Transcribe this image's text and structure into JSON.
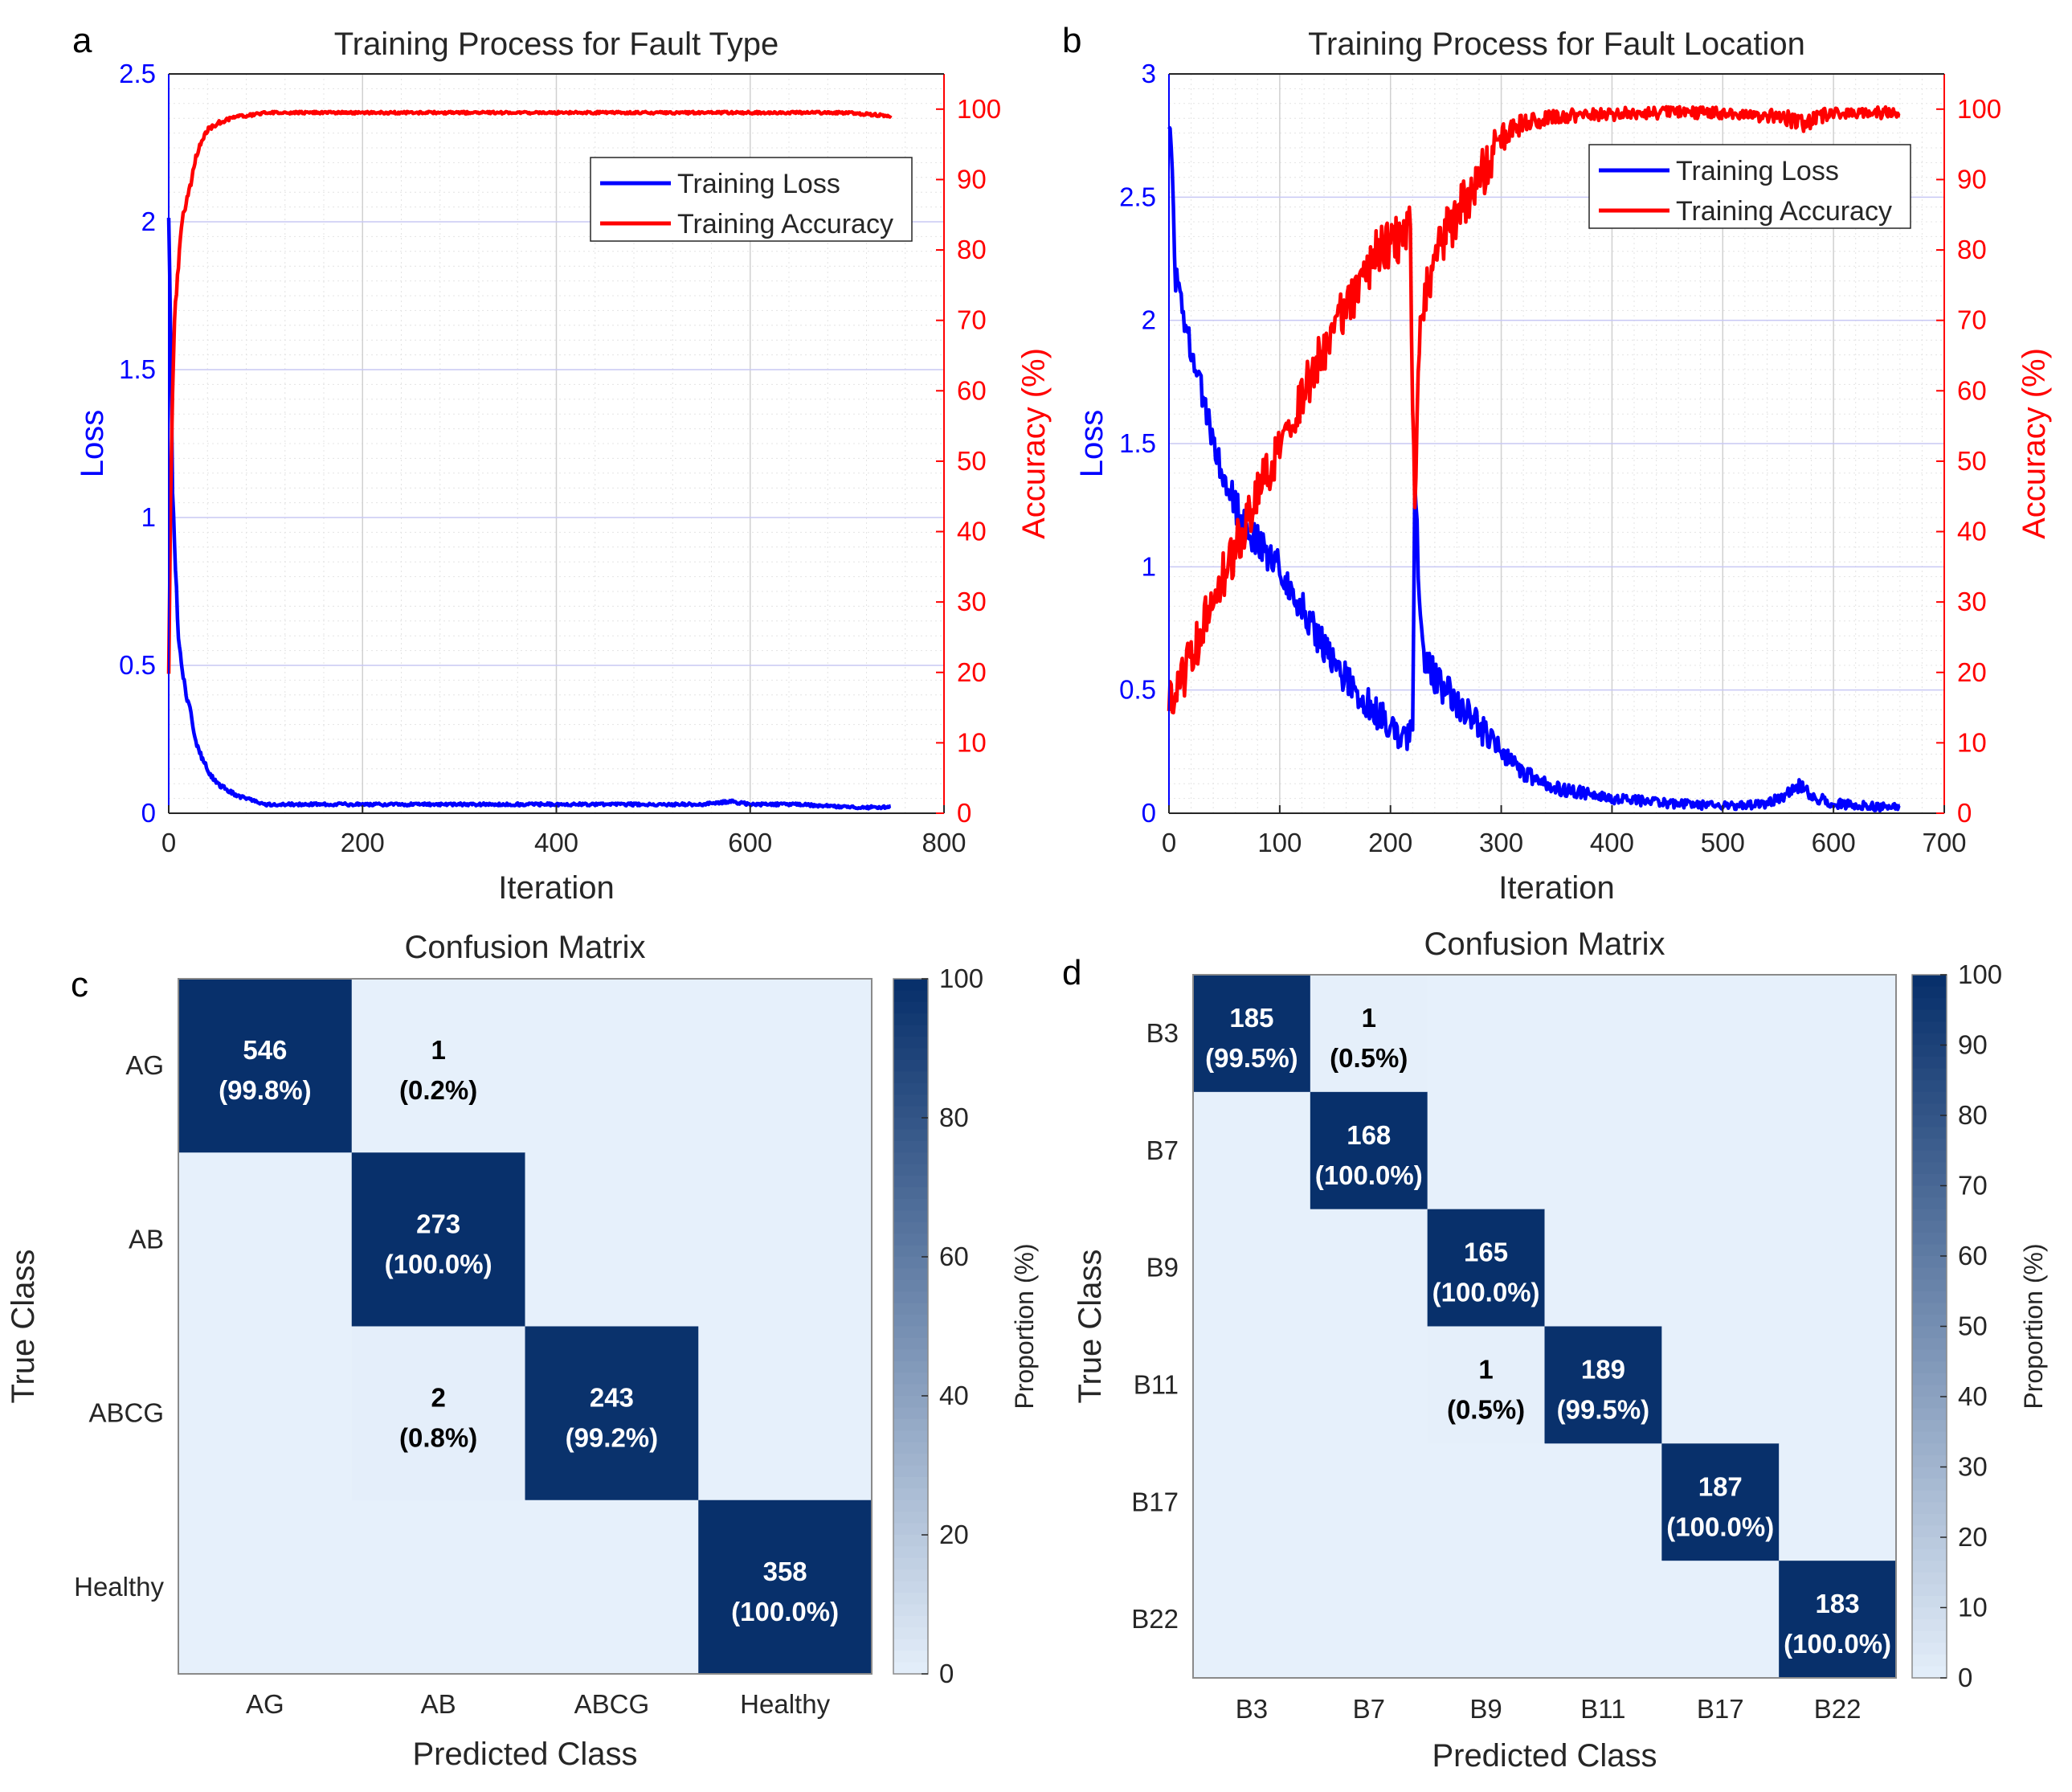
{
  "chart_data": [
    {
      "id": "a",
      "panel_letter": "a",
      "type": "line",
      "title": "Training Process for Fault Type",
      "xlabel": "Iteration",
      "ylabel_left": "Loss",
      "ylabel_right": "Accuracy (%)",
      "xlim": [
        0,
        800
      ],
      "ylim_left": [
        0,
        2.5
      ],
      "ylim_right": [
        0,
        105
      ],
      "xticks": [
        "0",
        "200",
        "400",
        "600",
        "800"
      ],
      "yticks_left": [
        "0",
        "0.5",
        "1",
        "1.5",
        "2",
        "2.5"
      ],
      "yticks_right": [
        "0",
        "10",
        "20",
        "30",
        "40",
        "50",
        "60",
        "70",
        "80",
        "90",
        "100"
      ],
      "legend": [
        "Training Loss",
        "Training Accuracy"
      ],
      "legend_position": "top-right",
      "series": [
        {
          "name": "Training Loss",
          "axis": "left",
          "color": "#0000ff",
          "x": [
            0,
            2,
            4,
            6,
            8,
            10,
            15,
            20,
            25,
            30,
            35,
            40,
            45,
            50,
            60,
            70,
            80,
            90,
            100,
            120,
            150,
            200,
            250,
            300,
            350,
            400,
            450,
            500,
            550,
            580,
            600,
            650,
            700,
            745
          ],
          "y": [
            2.02,
            1.6,
            1.1,
            0.9,
            0.75,
            0.6,
            0.45,
            0.38,
            0.3,
            0.22,
            0.18,
            0.15,
            0.12,
            0.1,
            0.08,
            0.06,
            0.05,
            0.04,
            0.03,
            0.03,
            0.03,
            0.03,
            0.03,
            0.03,
            0.03,
            0.03,
            0.03,
            0.03,
            0.03,
            0.04,
            0.03,
            0.03,
            0.02,
            0.02
          ],
          "noise": 0.012
        },
        {
          "name": "Training Accuracy",
          "axis": "right",
          "color": "#ff0000",
          "x": [
            0,
            2,
            4,
            6,
            8,
            10,
            12,
            15,
            20,
            25,
            30,
            35,
            40,
            50,
            60,
            70,
            80,
            90,
            100,
            150,
            200,
            300,
            400,
            500,
            600,
            700,
            745
          ],
          "y": [
            20,
            45,
            60,
            70,
            74,
            78,
            82,
            85,
            88,
            91,
            94,
            96,
            97,
            98,
            98.5,
            99,
            99,
            99.3,
            99.5,
            99.5,
            99.5,
            99.5,
            99.5,
            99.5,
            99.5,
            99.5,
            99
          ],
          "noise": 0.45
        }
      ]
    },
    {
      "id": "b",
      "panel_letter": "b",
      "type": "line",
      "title": "Training Process for Fault Location",
      "xlabel": "Iteration",
      "ylabel_left": "Loss",
      "ylabel_right": "Accuracy (%)",
      "xlim": [
        0,
        700
      ],
      "ylim_left": [
        0,
        3
      ],
      "ylim_right": [
        0,
        105
      ],
      "xticks": [
        "0",
        "100",
        "200",
        "300",
        "400",
        "500",
        "600",
        "700"
      ],
      "yticks_left": [
        "0",
        "0.5",
        "1",
        "1.5",
        "2",
        "2.5",
        "3"
      ],
      "yticks_right": [
        "0",
        "10",
        "20",
        "30",
        "40",
        "50",
        "60",
        "70",
        "80",
        "90",
        "100"
      ],
      "legend": [
        "Training Loss",
        "Training Accuracy"
      ],
      "legend_position": "top-right",
      "series": [
        {
          "name": "Training Loss",
          "axis": "left",
          "color": "#0000ff",
          "x": [
            0,
            3,
            5,
            10,
            20,
            30,
            50,
            70,
            100,
            130,
            150,
            170,
            190,
            205,
            215,
            220,
            222,
            226,
            230,
            240,
            260,
            280,
            300,
            320,
            350,
            380,
            400,
            450,
            500,
            540,
            560,
            570,
            580,
            600,
            630,
            660
          ],
          "y": [
            2.8,
            2.6,
            2.2,
            2.1,
            1.9,
            1.7,
            1.35,
            1.15,
            1.0,
            0.75,
            0.6,
            0.5,
            0.4,
            0.33,
            0.3,
            0.35,
            1.35,
            0.9,
            0.65,
            0.55,
            0.45,
            0.35,
            0.25,
            0.16,
            0.1,
            0.08,
            0.06,
            0.04,
            0.03,
            0.04,
            0.08,
            0.12,
            0.07,
            0.04,
            0.03,
            0.02
          ],
          "noise": 0.045
        },
        {
          "name": "Training Accuracy",
          "axis": "right",
          "color": "#ff0000",
          "x": [
            0,
            5,
            10,
            20,
            40,
            60,
            80,
            100,
            130,
            160,
            190,
            210,
            218,
            220,
            222,
            226,
            230,
            240,
            260,
            280,
            300,
            320,
            350,
            380,
            400,
            450,
            500,
            550,
            570,
            600,
            660
          ],
          "y": [
            15,
            16,
            18,
            22,
            30,
            38,
            45,
            52,
            63,
            72,
            80,
            82,
            83,
            55,
            45,
            68,
            72,
            80,
            85,
            90,
            96,
            98,
            99,
            99,
            99.3,
            99.5,
            99.5,
            99,
            98,
            99.5,
            99.5
          ],
          "noise": 2.2
        }
      ]
    },
    {
      "id": "c",
      "panel_letter": "c",
      "type": "heatmap",
      "title": "Confusion Matrix",
      "xlabel": "Predicted Class",
      "ylabel": "True Class",
      "rows": [
        "AG",
        "AB",
        "ABCG",
        "Healthy"
      ],
      "cols": [
        "AG",
        "AB",
        "ABCG",
        "Healthy"
      ],
      "counts": [
        [
          546,
          1,
          0,
          0
        ],
        [
          0,
          273,
          0,
          0
        ],
        [
          0,
          2,
          243,
          0
        ],
        [
          0,
          0,
          0,
          358
        ]
      ],
      "cell_text": [
        [
          [
            "546",
            "(99.8%)"
          ],
          [
            "1",
            "(0.2%)"
          ],
          null,
          null
        ],
        [
          null,
          [
            "273",
            "(100.0%)"
          ],
          null,
          null
        ],
        [
          null,
          [
            "2",
            "(0.8%)"
          ],
          [
            "243",
            "(99.2%)"
          ],
          null
        ],
        [
          null,
          null,
          null,
          [
            "358",
            "(100.0%)"
          ]
        ]
      ],
      "colorbar_label": "Proportion (%)",
      "colorbar_ticks": [
        "0",
        "20",
        "40",
        "60",
        "80",
        "100"
      ],
      "colorbar_range": [
        0,
        100
      ],
      "color_low": "#e6f0fb",
      "color_high": "#08306b"
    },
    {
      "id": "d",
      "panel_letter": "d",
      "type": "heatmap",
      "title": "Confusion Matrix",
      "xlabel": "Predicted Class",
      "ylabel": "True Class",
      "rows": [
        "B3",
        "B7",
        "B9",
        "B11",
        "B17",
        "B22"
      ],
      "cols": [
        "B3",
        "B7",
        "B9",
        "B11",
        "B17",
        "B22"
      ],
      "counts": [
        [
          185,
          1,
          0,
          0,
          0,
          0
        ],
        [
          0,
          168,
          0,
          0,
          0,
          0
        ],
        [
          0,
          0,
          165,
          0,
          0,
          0
        ],
        [
          0,
          0,
          1,
          189,
          0,
          0
        ],
        [
          0,
          0,
          0,
          0,
          187,
          0
        ],
        [
          0,
          0,
          0,
          0,
          0,
          183
        ]
      ],
      "cell_text": [
        [
          [
            "185",
            "(99.5%)"
          ],
          [
            "1",
            "(0.5%)"
          ],
          null,
          null,
          null,
          null
        ],
        [
          null,
          [
            "168",
            "(100.0%)"
          ],
          null,
          null,
          null,
          null
        ],
        [
          null,
          null,
          [
            "165",
            "(100.0%)"
          ],
          null,
          null,
          null
        ],
        [
          null,
          null,
          [
            "1",
            "(0.5%)"
          ],
          [
            "189",
            "(99.5%)"
          ],
          null,
          null
        ],
        [
          null,
          null,
          null,
          null,
          [
            "187",
            "(100.0%)"
          ],
          null
        ],
        [
          null,
          null,
          null,
          null,
          null,
          [
            "183",
            "(100.0%)"
          ]
        ]
      ],
      "colorbar_label": "Proportion (%)",
      "colorbar_ticks": [
        "0",
        "10",
        "20",
        "30",
        "40",
        "50",
        "60",
        "70",
        "80",
        "90",
        "100"
      ],
      "colorbar_range": [
        0,
        100
      ],
      "color_low": "#e6f0fb",
      "color_high": "#08306b"
    }
  ]
}
